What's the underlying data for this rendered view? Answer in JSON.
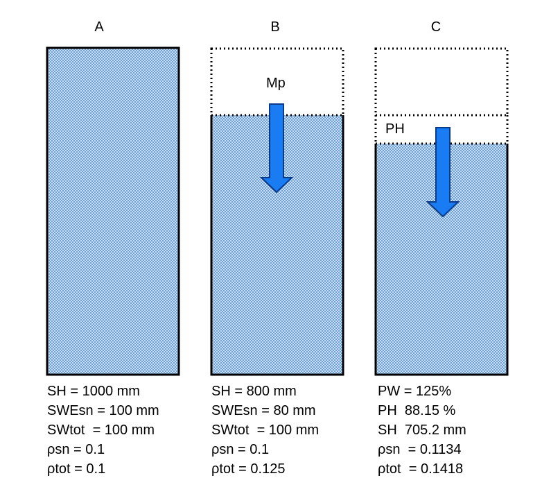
{
  "columns": [
    {
      "label": "A",
      "lines": [
        "SH = 1000 mm",
        "SWEsn = 100 mm",
        "SWtot  = 100 mm",
        "ρsn = 0.1",
        "ρtot = 0.1"
      ]
    },
    {
      "label": "B",
      "inner_label": "Mp",
      "lines": [
        "SH = 800 mm",
        "SWEsn = 80 mm",
        "SWtot  = 100 mm",
        "ρsn = 0.1",
        "ρtot = 0.125"
      ]
    },
    {
      "label": "C",
      "inner_label": "PH",
      "lines": [
        "PW = 125%",
        "PH  88.15 %",
        "SH  705.2 mm",
        "ρsn  = 0.1134",
        "ρtot  = 0.1418"
      ]
    }
  ],
  "colors": {
    "snow_fill": "#c9dcf0",
    "snow_dot": "#6fa3d6",
    "arrow": "#1a7cf2",
    "outline": "#000000"
  }
}
